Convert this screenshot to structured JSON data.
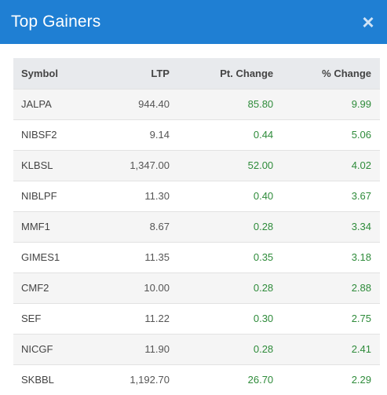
{
  "modal": {
    "title": "Top Gainers",
    "close_label": "×"
  },
  "table": {
    "headers": {
      "symbol": "Symbol",
      "ltp": "LTP",
      "pt_change": "Pt. Change",
      "pct_change": "% Change"
    },
    "rows": [
      {
        "symbol": "JALPA",
        "ltp": "944.40",
        "pt_change": "85.80",
        "pct_change": "9.99"
      },
      {
        "symbol": "NIBSF2",
        "ltp": "9.14",
        "pt_change": "0.44",
        "pct_change": "5.06"
      },
      {
        "symbol": "KLBSL",
        "ltp": "1,347.00",
        "pt_change": "52.00",
        "pct_change": "4.02"
      },
      {
        "symbol": "NIBLPF",
        "ltp": "11.30",
        "pt_change": "0.40",
        "pct_change": "3.67"
      },
      {
        "symbol": "MMF1",
        "ltp": "8.67",
        "pt_change": "0.28",
        "pct_change": "3.34"
      },
      {
        "symbol": "GIMES1",
        "ltp": "11.35",
        "pt_change": "0.35",
        "pct_change": "3.18"
      },
      {
        "symbol": "CMF2",
        "ltp": "10.00",
        "pt_change": "0.28",
        "pct_change": "2.88"
      },
      {
        "symbol": "SEF",
        "ltp": "11.22",
        "pt_change": "0.30",
        "pct_change": "2.75"
      },
      {
        "symbol": "NICGF",
        "ltp": "11.90",
        "pt_change": "0.28",
        "pct_change": "2.41"
      },
      {
        "symbol": "SKBBL",
        "ltp": "1,192.70",
        "pt_change": "26.70",
        "pct_change": "2.29"
      }
    ]
  },
  "colors": {
    "header_bg": "#1f7fd3",
    "positive": "#2e8b3a",
    "table_header_bg": "#e8eaed"
  }
}
